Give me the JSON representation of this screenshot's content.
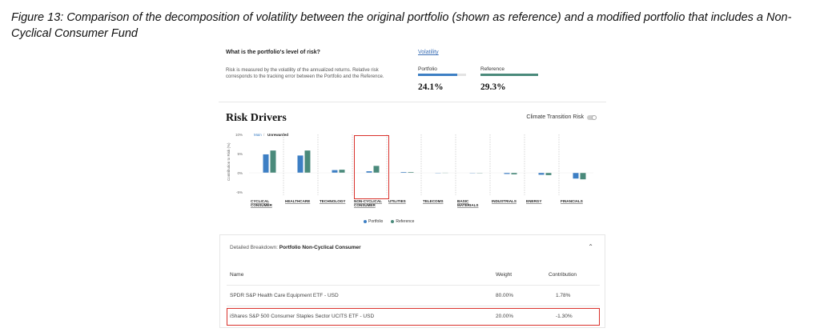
{
  "caption": "Figure 13: Comparison of the decomposition of volatility between the original portfolio (shown as reference) and a modified portfolio that includes a Non-Cyclical Consumer Fund",
  "risk_level": {
    "question": "What is the portfolio's level of risk?",
    "description": "Risk is measured by the volatility of the annualized returns. Relative risk corresponds to the tracking error between the Portfolio and the Reference.",
    "link": "Volatility",
    "portfolio_label": "Portfolio",
    "portfolio_value": "24.1%",
    "reference_label": "Reference",
    "reference_value": "29.3%",
    "portfolio_fill": 0.82,
    "reference_fill": 1.0
  },
  "risk_drivers": {
    "title": "Risk Drivers",
    "toggle_label": "Climate Transition Risk",
    "view_main": "Main",
    "view_sep": "/",
    "view_unrewarded": "Unrewarded",
    "y_axis_label": "Contribution to Risk (%)"
  },
  "colors": {
    "portfolio": "#3d7fc4",
    "reference": "#4a8a7b",
    "highlight": "#d9312b"
  },
  "chart_data": {
    "type": "bar",
    "title": "Risk Drivers",
    "ylabel": "Contribution to Risk (%)",
    "ylim": [
      -5,
      10
    ],
    "yticks": [
      "10%",
      "5%",
      "0%",
      "-5%"
    ],
    "categories": [
      "CYCLICAL CONSUMER",
      "HEALTHCARE",
      "TECHNOLOGY",
      "NON-CYCLICAL CONSUMER",
      "UTILITIES",
      "TELECOMS",
      "BASIC MATERIALS",
      "INDUSTRIALS",
      "ENERGY",
      "FINANCIALS"
    ],
    "category_lines": [
      [
        "CYCLICAL",
        "CONSUMER"
      ],
      [
        "HEALTHCARE"
      ],
      [
        "TECHNOLOGY"
      ],
      [
        "NON-CYCLICAL",
        "CONSUMER"
      ],
      [
        "UTILITIES"
      ],
      [
        "TELECOMS"
      ],
      [
        "BASIC",
        "MATERIALS"
      ],
      [
        "INDUSTRIALS"
      ],
      [
        "ENERGY"
      ],
      [
        "FINANCIALS"
      ]
    ],
    "series": [
      {
        "name": "Portfolio",
        "values": [
          4.8,
          4.5,
          0.7,
          0.4,
          0.2,
          0.0,
          -0.1,
          -0.3,
          -0.5,
          -1.5
        ]
      },
      {
        "name": "Reference",
        "values": [
          5.8,
          5.8,
          0.8,
          1.8,
          0.2,
          0.05,
          -0.1,
          -0.4,
          -0.6,
          -1.7
        ]
      }
    ],
    "legend": [
      "Portfolio",
      "Reference"
    ]
  },
  "breakdown": {
    "title_prefix": "Detailed Breakdown: ",
    "title_bold": "Portfolio Non-Cyclical Consumer",
    "col_name": "Name",
    "col_weight": "Weight",
    "col_contribution": "Contribution",
    "rows": [
      {
        "name": "SPDR S&P Health Care Equipment ETF - USD",
        "weight": "80.00%",
        "contribution": "1.78%"
      },
      {
        "name": "iShares S&P 500 Consumer Staples Sector UCITS ETF - USD",
        "weight": "20.00%",
        "contribution": "-1.30%"
      }
    ]
  }
}
